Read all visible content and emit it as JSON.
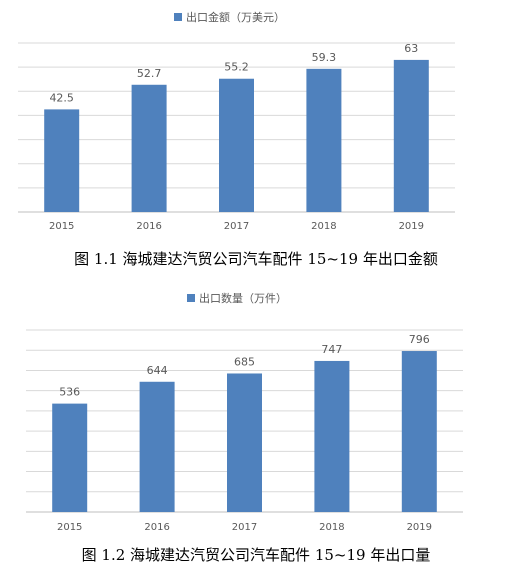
{
  "figures": [
    {
      "legend_label": "出口金额（万美元）",
      "caption": "图 1.1 海城建达汽贸公司汽车配件 15~19 年出口金额"
    },
    {
      "legend_label": "出口数量（万件）",
      "caption": "图 1.2  海城建达汽贸公司汽车配件 15~19 年出口量"
    }
  ],
  "colors": {
    "bar": "#4f81bd",
    "grid": "#d9d9d9",
    "text": "#595959"
  },
  "chart_data": [
    {
      "type": "bar",
      "categories": [
        "2015",
        "2016",
        "2017",
        "2018",
        "2019"
      ],
      "values": [
        42.5,
        52.7,
        55.2,
        59.3,
        63
      ],
      "value_labels": [
        "42.5",
        "52.7",
        "55.2",
        "59.3",
        "63"
      ],
      "series": [
        {
          "name": "出口金额（万美元）",
          "values": [
            42.5,
            52.7,
            55.2,
            59.3,
            63
          ]
        }
      ],
      "ylim": [
        0,
        70
      ],
      "grid": true,
      "legend": "top"
    },
    {
      "type": "bar",
      "categories": [
        "2015",
        "2016",
        "2017",
        "2018",
        "2019"
      ],
      "values": [
        536,
        644,
        685,
        747,
        796
      ],
      "value_labels": [
        "536",
        "644",
        "685",
        "747",
        "796"
      ],
      "series": [
        {
          "name": "出口数量（万件）",
          "values": [
            536,
            644,
            685,
            747,
            796
          ]
        }
      ],
      "ylim": [
        0,
        900
      ],
      "grid": true,
      "legend": "top"
    }
  ]
}
